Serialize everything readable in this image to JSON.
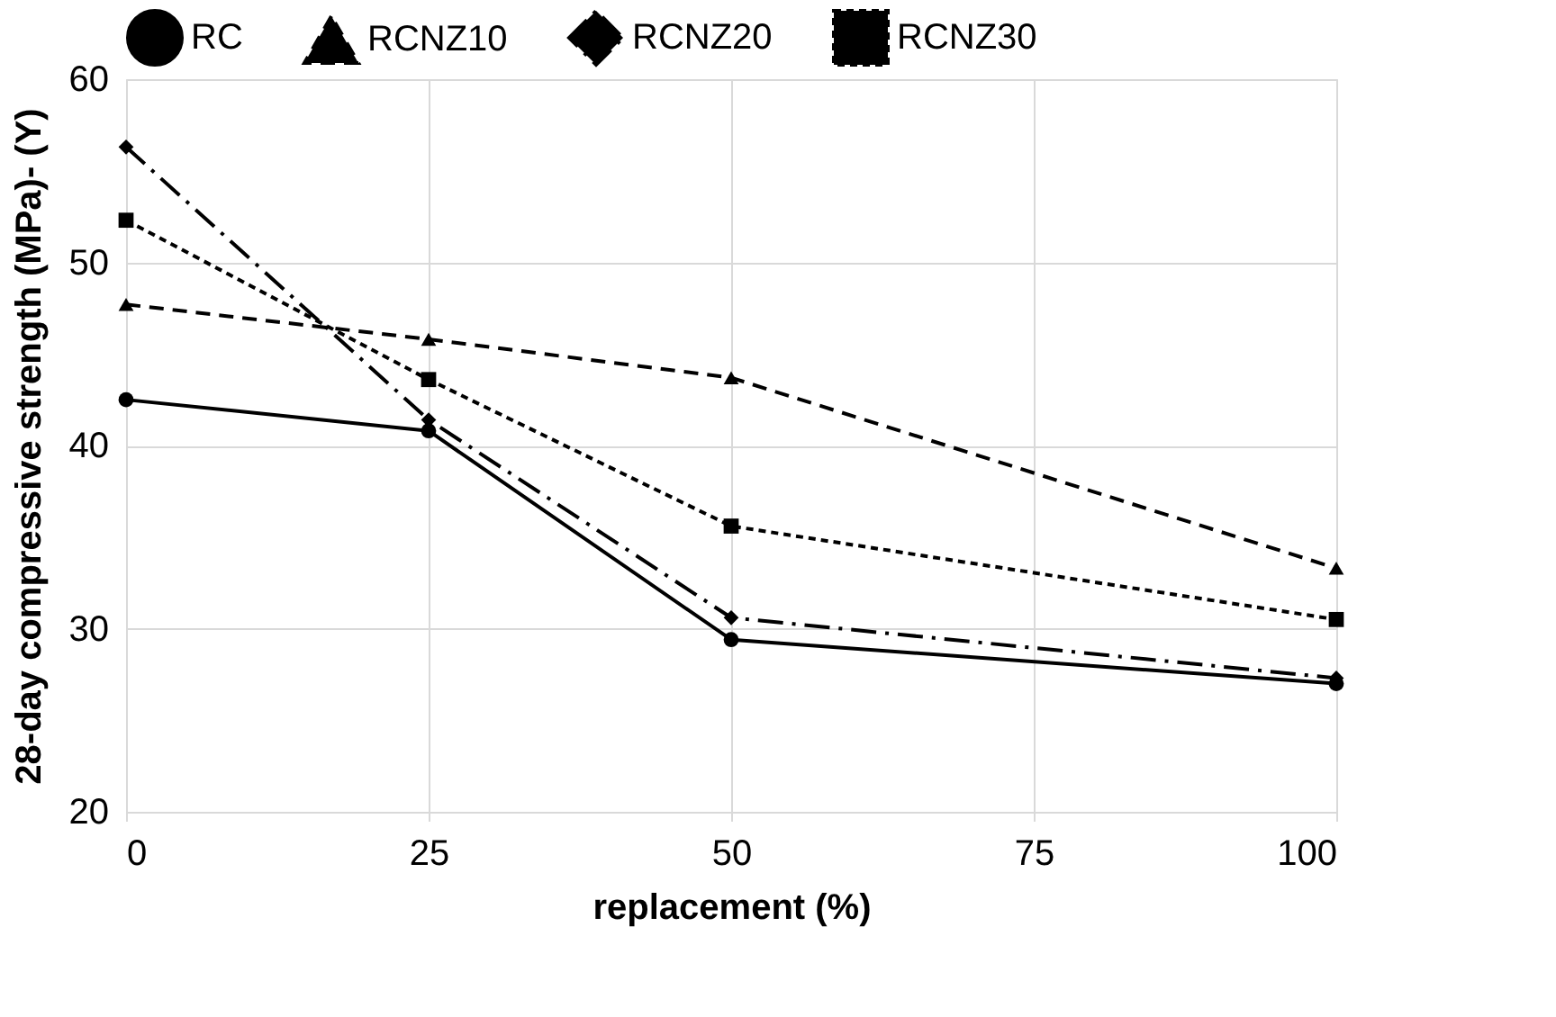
{
  "chart_data": {
    "type": "line",
    "xlabel": "replacement (%)",
    "ylabel": "28-day compressive strength (MPa)- (Y)",
    "x": [
      0,
      25,
      50,
      100
    ],
    "series": [
      {
        "name": "RC",
        "color": "#000000",
        "values": [
          42.5,
          40.8,
          29.4,
          27.0
        ],
        "marker": "circle",
        "line_style": "solid"
      },
      {
        "name": "RCNZ10",
        "color": "#000000",
        "values": [
          47.7,
          45.8,
          43.7,
          33.3
        ],
        "marker": "triangle",
        "line_style": "dashed"
      },
      {
        "name": "RCNZ20",
        "color": "#000000",
        "values": [
          56.3,
          41.4,
          30.6,
          27.3
        ],
        "marker": "diamond",
        "line_style": "dashdot"
      },
      {
        "name": "RCNZ30",
        "color": "#000000",
        "values": [
          52.3,
          43.6,
          35.6,
          30.5
        ],
        "marker": "square",
        "line_style": "dotted"
      }
    ],
    "xlim": [
      0,
      100
    ],
    "xticks": [
      0,
      25,
      50,
      75,
      100
    ],
    "ylim": [
      20,
      60
    ],
    "yticks": [
      20,
      30,
      40,
      50,
      60
    ],
    "grid": true,
    "legend": "top"
  }
}
